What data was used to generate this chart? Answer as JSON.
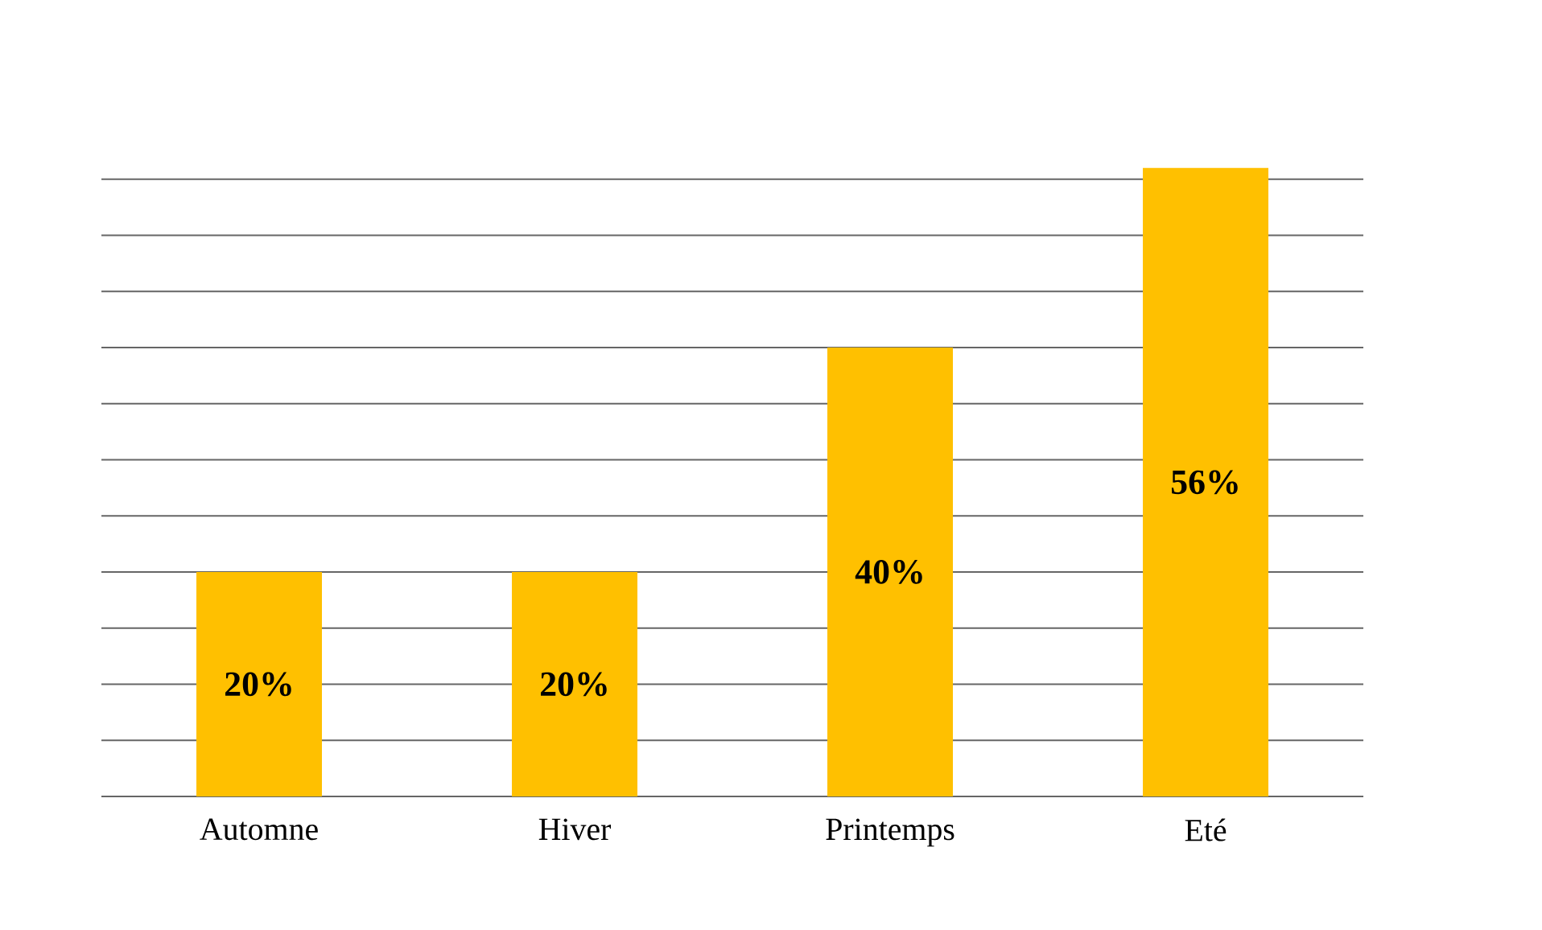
{
  "chart_data": {
    "type": "bar",
    "categories": [
      "Automne",
      "Hiver",
      "Printemps",
      "Eté"
    ],
    "values": [
      20,
      20,
      40,
      56
    ],
    "value_labels": [
      "20%",
      "20%",
      "40%",
      "56%"
    ],
    "color": "#ffc000",
    "grid": "y",
    "tick_labels": "x"
  }
}
